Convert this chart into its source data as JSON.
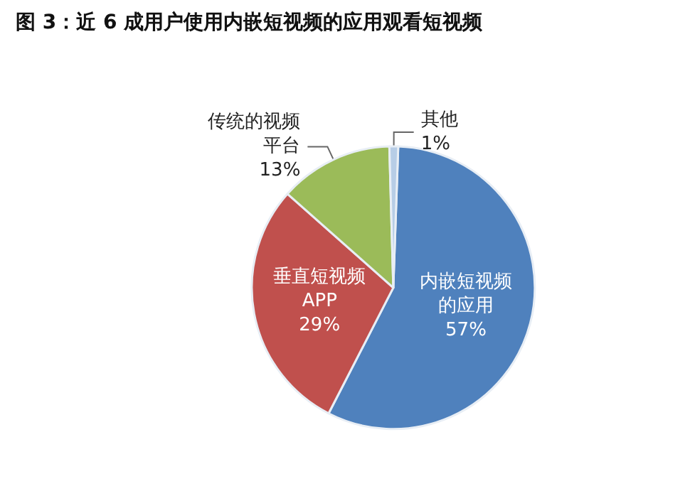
{
  "chart_data": {
    "type": "pie",
    "title": "图 3：近 6 成用户使用内嵌短视频的应用观看短视频",
    "categories": [
      "内嵌短视频的应用",
      "垂直短视频APP",
      "传统的视频平台",
      "其他"
    ],
    "values": [
      57,
      29,
      13,
      1
    ],
    "value_labels": [
      "57%",
      "29%",
      "13%",
      "1%"
    ],
    "colors": [
      "#4f81bd",
      "#c0504d",
      "#9bbb59",
      "#b7cde6"
    ],
    "legend": false
  }
}
